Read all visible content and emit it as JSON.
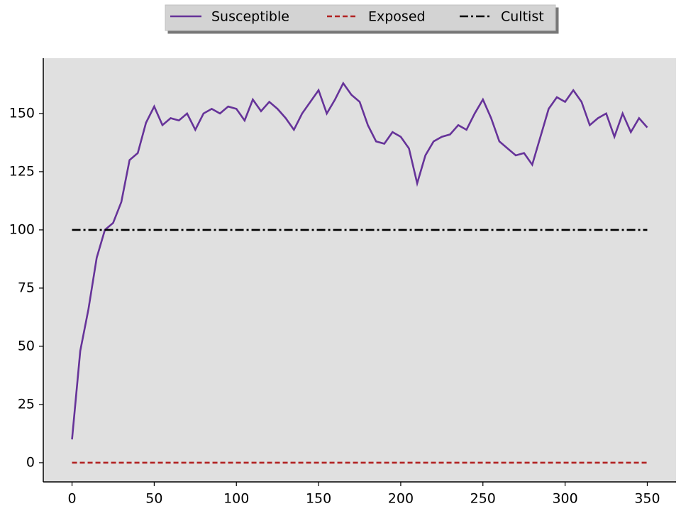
{
  "chart_data": {
    "type": "line",
    "x": [
      0,
      5,
      10,
      15,
      20,
      25,
      30,
      35,
      40,
      45,
      50,
      55,
      60,
      65,
      70,
      75,
      80,
      85,
      90,
      95,
      100,
      105,
      110,
      115,
      120,
      125,
      130,
      135,
      140,
      145,
      150,
      155,
      160,
      165,
      170,
      175,
      180,
      185,
      190,
      195,
      200,
      205,
      210,
      215,
      220,
      225,
      230,
      235,
      240,
      245,
      250,
      255,
      260,
      265,
      270,
      275,
      280,
      285,
      290,
      295,
      300,
      305,
      310,
      315,
      320,
      325,
      330,
      335,
      340,
      345,
      350
    ],
    "series": [
      {
        "name": "Susceptible",
        "color": "#663399",
        "dash": "solid",
        "values": [
          10,
          48,
          66,
          88,
          100,
          103,
          112,
          130,
          133,
          146,
          153,
          145,
          148,
          147,
          150,
          143,
          150,
          152,
          150,
          153,
          152,
          147,
          156,
          151,
          155,
          152,
          148,
          143,
          150,
          155,
          160,
          150,
          156,
          163,
          158,
          155,
          145,
          138,
          137,
          142,
          140,
          135,
          120,
          132,
          138,
          140,
          141,
          145,
          143,
          150,
          156,
          148,
          138,
          135,
          132,
          133,
          128,
          140,
          152,
          157,
          155,
          160,
          155,
          145,
          148,
          150,
          140,
          150,
          142,
          148,
          144
        ]
      },
      {
        "name": "Exposed",
        "color": "#b22222",
        "dash": "dashed",
        "values": [
          0,
          0,
          0,
          0,
          0,
          0,
          0,
          0,
          0,
          0,
          0,
          0,
          0,
          0,
          0,
          0,
          0,
          0,
          0,
          0,
          0,
          0,
          0,
          0,
          0,
          0,
          0,
          0,
          0,
          0,
          0,
          0,
          0,
          0,
          0,
          0,
          0,
          0,
          0,
          0,
          0,
          0,
          0,
          0,
          0,
          0,
          0,
          0,
          0,
          0,
          0,
          0,
          0,
          0,
          0,
          0,
          0,
          0,
          0,
          0,
          0,
          0,
          0,
          0,
          0,
          0,
          0,
          0,
          0,
          0,
          0
        ]
      },
      {
        "name": "Cultist",
        "color": "#000000",
        "dash": "dashdot",
        "values": [
          100,
          100,
          100,
          100,
          100,
          100,
          100,
          100,
          100,
          100,
          100,
          100,
          100,
          100,
          100,
          100,
          100,
          100,
          100,
          100,
          100,
          100,
          100,
          100,
          100,
          100,
          100,
          100,
          100,
          100,
          100,
          100,
          100,
          100,
          100,
          100,
          100,
          100,
          100,
          100,
          100,
          100,
          100,
          100,
          100,
          100,
          100,
          100,
          100,
          100,
          100,
          100,
          100,
          100,
          100,
          100,
          100,
          100,
          100,
          100,
          100,
          100,
          100,
          100,
          100,
          100,
          100,
          100,
          100,
          100,
          100
        ]
      }
    ],
    "xlim": [
      -17.5,
      367.5
    ],
    "xticks": [
      0,
      50,
      100,
      150,
      200,
      250,
      300,
      350
    ],
    "ylim": [
      -8.25,
      173.75
    ],
    "yticks": [
      0,
      25,
      50,
      75,
      100,
      125,
      150
    ],
    "legend": "top-center",
    "background": "#e0e0e0"
  }
}
